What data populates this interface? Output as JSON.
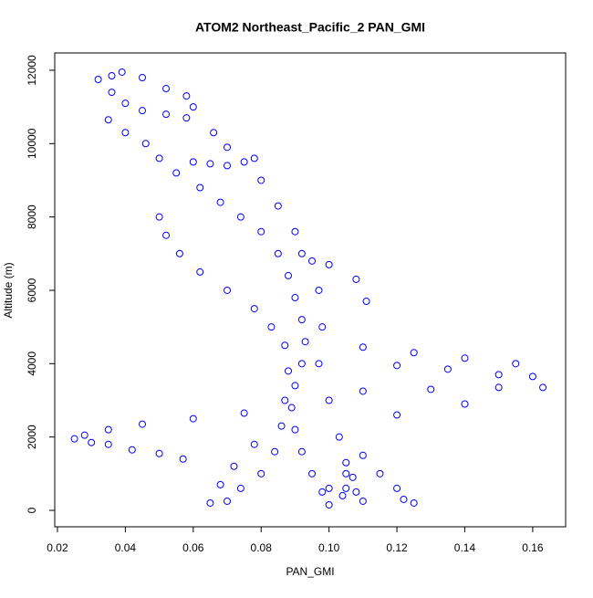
{
  "chart_data": {
    "type": "scatter",
    "title": "ATOM2 Northeast_Pacific_2 PAN_GMI",
    "x_label": "PAN_GMI",
    "y_label": "Altitude (m)",
    "color": "#0000ff",
    "xlim": [
      0.0192,
      0.1697
    ],
    "ylim": [
      -448,
      12472
    ],
    "xticks": [
      0.02,
      0.04,
      0.06,
      0.08,
      {
        "value": 0.1,
        "label": "0.10"
      },
      0.12,
      0.14,
      0.16
    ],
    "yticks": [
      0,
      2000,
      4000,
      6000,
      8000,
      10000,
      12000
    ],
    "x": [
      0.032,
      0.036,
      0.039,
      0.045,
      0.052,
      0.058,
      0.06,
      0.036,
      0.04,
      0.045,
      0.052,
      0.058,
      0.035,
      0.04,
      0.046,
      0.05,
      0.055,
      0.062,
      0.068,
      0.074,
      0.08,
      0.085,
      0.088,
      0.09,
      0.092,
      0.093,
      0.092,
      0.09,
      0.089,
      0.09,
      0.092,
      0.095,
      0.098,
      0.1,
      0.05,
      0.052,
      0.056,
      0.062,
      0.07,
      0.078,
      0.083,
      0.087,
      0.088,
      0.087,
      0.086,
      0.084,
      0.08,
      0.074,
      0.07,
      0.075,
      0.06,
      0.045,
      0.035,
      0.028,
      0.025,
      0.03,
      0.035,
      0.042,
      0.05,
      0.057,
      0.11,
      0.125,
      0.14,
      0.155,
      0.16,
      0.15,
      0.135,
      0.12,
      0.11,
      0.13,
      0.15,
      0.163,
      0.12,
      0.14,
      0.11,
      0.115,
      0.12,
      0.122,
      0.125,
      0.065,
      0.068,
      0.072,
      0.078,
      0.1,
      0.105,
      0.11,
      0.105,
      0.107,
      0.104,
      0.066,
      0.07,
      0.075,
      0.078,
      0.08,
      0.085,
      0.09,
      0.095,
      0.097,
      0.098,
      0.097,
      0.1,
      0.103,
      0.105,
      0.108,
      0.092,
      0.1,
      0.108,
      0.111,
      0.06,
      0.065,
      0.07
    ],
    "y": [
      11750,
      11850,
      11950,
      11800,
      11500,
      11300,
      11000,
      11400,
      11100,
      10900,
      10800,
      10700,
      10650,
      10300,
      10000,
      9600,
      9200,
      8800,
      8400,
      8000,
      7600,
      7000,
      6400,
      5800,
      5200,
      4600,
      4000,
      3400,
      2800,
      2200,
      1600,
      1000,
      500,
      150,
      8000,
      7500,
      7000,
      6500,
      6000,
      5500,
      5000,
      4500,
      3800,
      3000,
      2300,
      1600,
      1000,
      600,
      250,
      2650,
      2500,
      2350,
      2200,
      2050,
      1950,
      1850,
      1800,
      1650,
      1550,
      1400,
      4450,
      4300,
      4150,
      4000,
      3650,
      3700,
      3850,
      3950,
      3250,
      3300,
      3350,
      3350,
      2600,
      2900,
      1500,
      1000,
      600,
      300,
      200,
      200,
      700,
      1200,
      1800,
      600,
      600,
      250,
      1300,
      900,
      400,
      10300,
      9900,
      9500,
      9600,
      9000,
      8300,
      7600,
      6800,
      6000,
      5000,
      4000,
      3000,
      2000,
      1000,
      500,
      7000,
      6700,
      6300,
      5700,
      9500,
      9450,
      9400
    ]
  }
}
